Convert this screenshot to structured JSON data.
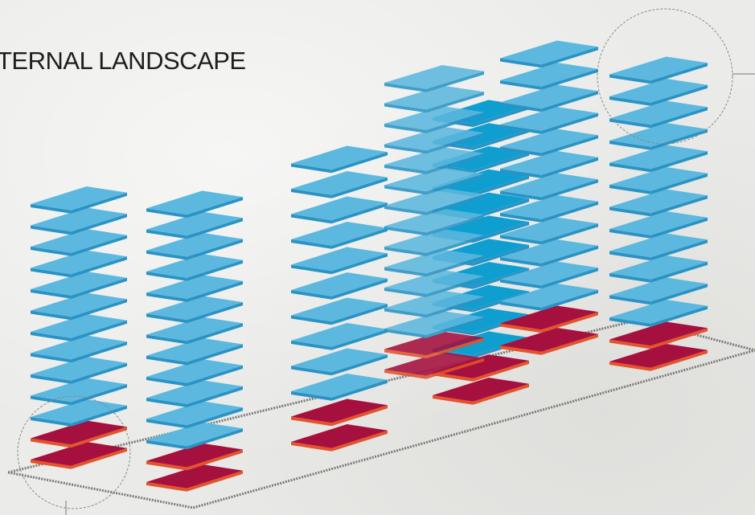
{
  "title": "TERNAL LANDSCAPE",
  "colors": {
    "floor_top": "#5cb8de",
    "floor_side": "#2a93c4",
    "core_floor_top": "#0e9fd0",
    "base_top": "#a5103e",
    "base_side": "#e2542a",
    "site_outline": "#7a7a7a",
    "callout": "#8a8a8a"
  },
  "towers": [
    {
      "name": "tower-1",
      "floors": 13,
      "base_floors": 2
    },
    {
      "name": "tower-2",
      "floors": 14,
      "base_floors": 2
    },
    {
      "name": "tower-3",
      "floors": 12,
      "base_floors": 2
    },
    {
      "name": "tower-4",
      "floors": 15,
      "base_floors": 2
    },
    {
      "name": "tower-5",
      "floors": 13,
      "base_floors": 2
    },
    {
      "name": "tower-6",
      "floors": 14,
      "base_floors": 2
    },
    {
      "name": "tower-7",
      "floors": 14,
      "base_floors": 2
    }
  ]
}
